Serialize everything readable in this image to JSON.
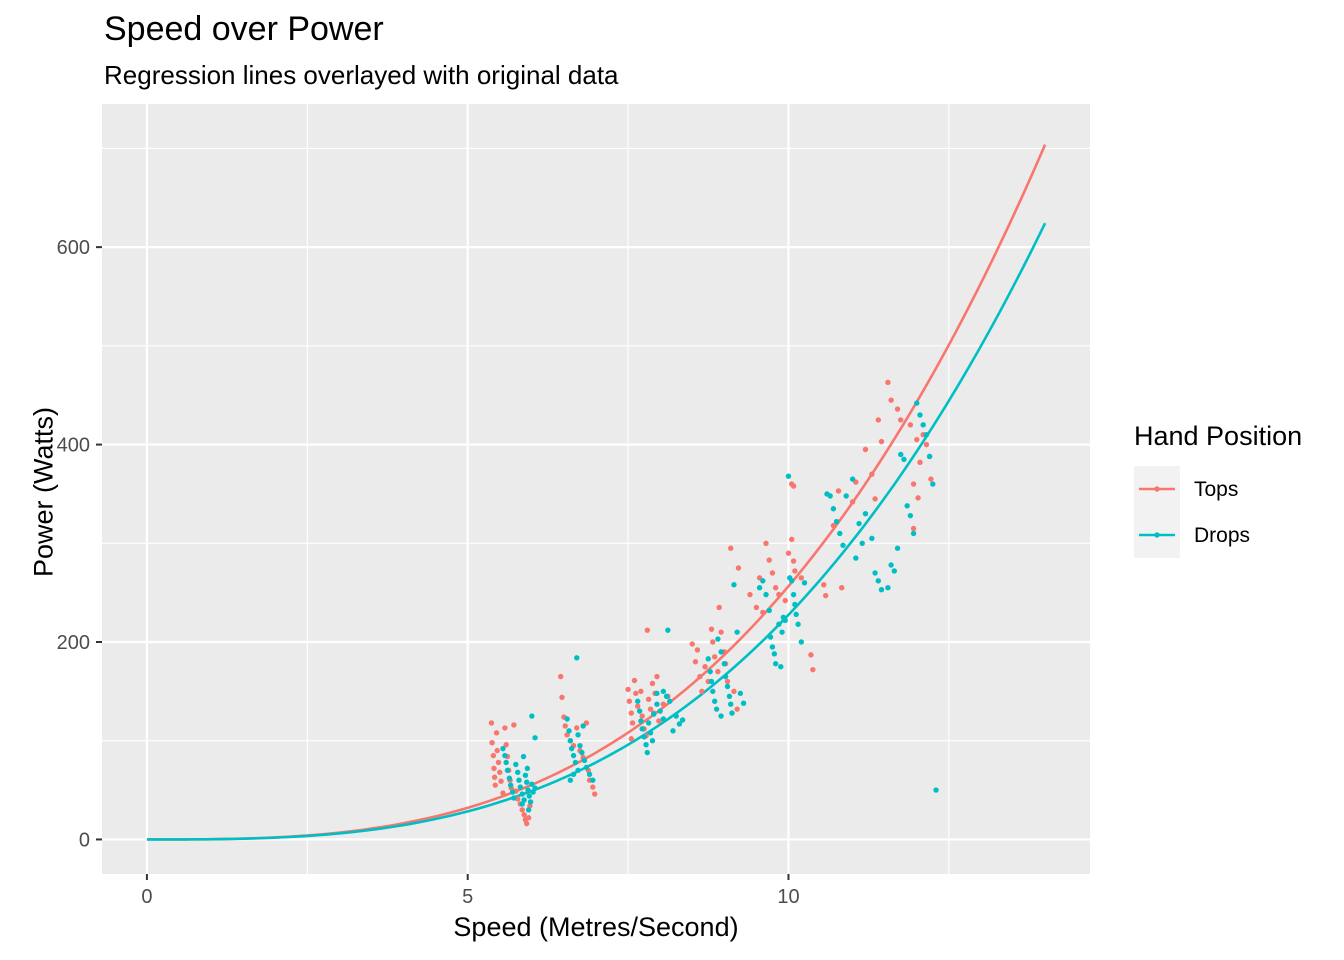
{
  "chart_data": {
    "type": "scatter",
    "title": "Speed over Power",
    "subtitle": "Regression lines overlayed with original data",
    "xlabel": "Speed (Metres/Second)",
    "ylabel": "Power (Watts)",
    "xlim": [
      -0.7,
      14.7
    ],
    "ylim": [
      -35,
      745
    ],
    "x_ticks": [
      0,
      5,
      10
    ],
    "y_ticks": [
      0,
      200,
      400,
      600
    ],
    "grid": true,
    "legend": {
      "title": "Hand Position",
      "position": "right",
      "entries": [
        "Tops",
        "Drops"
      ]
    },
    "series": [
      {
        "name": "Tops",
        "color": "#F8766D",
        "fit": {
          "model": "power ~ speed^3",
          "coefficient": 0.2565,
          "x_range": [
            0,
            14
          ]
        },
        "points": [
          [
            5.37,
            118
          ],
          [
            5.38,
            98
          ],
          [
            5.4,
            85
          ],
          [
            5.41,
            72
          ],
          [
            5.42,
            63
          ],
          [
            5.43,
            55
          ],
          [
            5.45,
            108
          ],
          [
            5.46,
            90
          ],
          [
            5.48,
            78
          ],
          [
            5.5,
            68
          ],
          [
            5.52,
            59
          ],
          [
            5.55,
            47
          ],
          [
            5.58,
            113
          ],
          [
            5.6,
            96
          ],
          [
            5.62,
            84
          ],
          [
            5.64,
            70
          ],
          [
            5.66,
            60
          ],
          [
            5.68,
            52
          ],
          [
            5.72,
            116
          ],
          [
            5.75,
            49
          ],
          [
            5.78,
            41
          ],
          [
            5.82,
            36
          ],
          [
            5.85,
            30
          ],
          [
            5.88,
            25
          ],
          [
            5.9,
            20
          ],
          [
            5.92,
            16
          ],
          [
            5.95,
            22
          ],
          [
            5.97,
            34
          ],
          [
            6.45,
            165
          ],
          [
            6.47,
            144
          ],
          [
            6.5,
            124
          ],
          [
            6.52,
            115
          ],
          [
            6.55,
            106
          ],
          [
            6.6,
            100
          ],
          [
            6.65,
            95
          ],
          [
            6.7,
            113
          ],
          [
            6.75,
            90
          ],
          [
            6.8,
            83
          ],
          [
            6.85,
            118
          ],
          [
            6.88,
            70
          ],
          [
            6.9,
            60
          ],
          [
            6.95,
            53
          ],
          [
            6.98,
            46
          ],
          [
            7.5,
            152
          ],
          [
            7.52,
            140
          ],
          [
            7.55,
            128
          ],
          [
            7.57,
            118
          ],
          [
            7.6,
            161
          ],
          [
            7.62,
            148
          ],
          [
            7.65,
            135
          ],
          [
            7.7,
            150
          ],
          [
            7.72,
            125
          ],
          [
            7.75,
            112
          ],
          [
            7.78,
            105
          ],
          [
            7.8,
            212
          ],
          [
            7.82,
            142
          ],
          [
            7.85,
            132
          ],
          [
            7.88,
            158
          ],
          [
            7.9,
            128
          ],
          [
            7.92,
            148
          ],
          [
            7.98,
            120
          ],
          [
            8.05,
            137
          ],
          [
            8.12,
            145
          ],
          [
            7.55,
            102
          ],
          [
            7.95,
            165
          ],
          [
            8.5,
            198
          ],
          [
            8.55,
            180
          ],
          [
            8.58,
            192
          ],
          [
            8.62,
            165
          ],
          [
            8.65,
            150
          ],
          [
            8.7,
            175
          ],
          [
            8.75,
            160
          ],
          [
            8.8,
            213
          ],
          [
            8.82,
            200
          ],
          [
            8.85,
            185
          ],
          [
            8.9,
            170
          ],
          [
            8.92,
            235
          ],
          [
            8.95,
            210
          ],
          [
            9.0,
            190
          ],
          [
            9.02,
            178
          ],
          [
            9.05,
            160
          ],
          [
            9.1,
            295
          ],
          [
            9.15,
            150
          ],
          [
            9.2,
            132
          ],
          [
            9.22,
            275
          ],
          [
            9.4,
            248
          ],
          [
            9.5,
            235
          ],
          [
            9.55,
            265
          ],
          [
            9.6,
            230
          ],
          [
            9.65,
            300
          ],
          [
            9.7,
            283
          ],
          [
            9.75,
            270
          ],
          [
            9.8,
            255
          ],
          [
            9.85,
            248
          ],
          [
            9.95,
            242
          ],
          [
            10.0,
            290
          ],
          [
            10.05,
            304
          ],
          [
            10.08,
            282
          ],
          [
            10.1,
            272
          ],
          [
            10.2,
            265
          ],
          [
            10.05,
            360
          ],
          [
            10.08,
            358
          ],
          [
            10.35,
            187
          ],
          [
            10.38,
            172
          ],
          [
            10.55,
            258
          ],
          [
            10.58,
            247
          ],
          [
            10.7,
            318
          ],
          [
            10.78,
            353
          ],
          [
            10.83,
            255
          ],
          [
            11.0,
            342
          ],
          [
            11.05,
            362
          ],
          [
            11.2,
            395
          ],
          [
            11.3,
            370
          ],
          [
            11.35,
            345
          ],
          [
            11.4,
            425
          ],
          [
            11.45,
            403
          ],
          [
            11.55,
            463
          ],
          [
            11.6,
            445
          ],
          [
            11.7,
            436
          ],
          [
            11.75,
            425
          ],
          [
            11.9,
            420
          ],
          [
            12.0,
            405
          ],
          [
            12.05,
            382
          ],
          [
            12.1,
            410
          ],
          [
            12.15,
            400
          ],
          [
            12.2,
            388
          ],
          [
            11.95,
            360
          ],
          [
            12.02,
            346
          ],
          [
            12.22,
            365
          ],
          [
            11.95,
            315
          ]
        ]
      },
      {
        "name": "Drops",
        "color": "#00BFC4",
        "fit": {
          "model": "power ~ speed^3",
          "coefficient": 0.2275,
          "x_range": [
            0,
            14
          ]
        },
        "points": [
          [
            5.55,
            92
          ],
          [
            5.58,
            85
          ],
          [
            5.6,
            78
          ],
          [
            5.62,
            70
          ],
          [
            5.65,
            62
          ],
          [
            5.67,
            55
          ],
          [
            5.7,
            48
          ],
          [
            5.72,
            42
          ],
          [
            5.75,
            76
          ],
          [
            5.78,
            68
          ],
          [
            5.8,
            60
          ],
          [
            5.82,
            53
          ],
          [
            5.85,
            46
          ],
          [
            5.88,
            40
          ],
          [
            5.9,
            65
          ],
          [
            5.92,
            58
          ],
          [
            5.94,
            50
          ],
          [
            5.96,
            44
          ],
          [
            5.98,
            38
          ],
          [
            6.0,
            56
          ],
          [
            6.02,
            48
          ],
          [
            6.05,
            52
          ],
          [
            5.85,
            36
          ],
          [
            5.95,
            30
          ],
          [
            6.0,
            125
          ],
          [
            5.87,
            84
          ],
          [
            5.93,
            72
          ],
          [
            6.05,
            103
          ],
          [
            6.55,
            122
          ],
          [
            6.58,
            110
          ],
          [
            6.6,
            100
          ],
          [
            6.62,
            92
          ],
          [
            6.65,
            85
          ],
          [
            6.68,
            78
          ],
          [
            6.7,
            184
          ],
          [
            6.72,
            70
          ],
          [
            6.75,
            95
          ],
          [
            6.78,
            88
          ],
          [
            6.82,
            80
          ],
          [
            6.85,
            73
          ],
          [
            6.9,
            66
          ],
          [
            6.95,
            60
          ],
          [
            6.6,
            60
          ],
          [
            6.65,
            66
          ],
          [
            6.72,
            106
          ],
          [
            6.8,
            115
          ],
          [
            7.65,
            140
          ],
          [
            7.68,
            130
          ],
          [
            7.7,
            120
          ],
          [
            7.72,
            112
          ],
          [
            7.75,
            104
          ],
          [
            7.78,
            96
          ],
          [
            7.8,
            88
          ],
          [
            7.82,
            118
          ],
          [
            7.85,
            108
          ],
          [
            7.88,
            100
          ],
          [
            7.9,
            127
          ],
          [
            7.95,
            137
          ],
          [
            8.0,
            130
          ],
          [
            8.05,
            122
          ],
          [
            8.1,
            145
          ],
          [
            8.12,
            212
          ],
          [
            8.15,
            140
          ],
          [
            8.2,
            110
          ],
          [
            8.25,
            125
          ],
          [
            8.3,
            117
          ],
          [
            8.35,
            121
          ],
          [
            7.95,
            148
          ],
          [
            8.05,
            150
          ],
          [
            8.75,
            183
          ],
          [
            8.78,
            170
          ],
          [
            8.8,
            160
          ],
          [
            8.82,
            150
          ],
          [
            8.85,
            140
          ],
          [
            8.88,
            132
          ],
          [
            8.9,
            203
          ],
          [
            8.95,
            190
          ],
          [
            9.0,
            178
          ],
          [
            9.02,
            165
          ],
          [
            9.05,
            155
          ],
          [
            9.08,
            145
          ],
          [
            9.1,
            137
          ],
          [
            9.12,
            128
          ],
          [
            9.15,
            258
          ],
          [
            9.2,
            210
          ],
          [
            9.25,
            148
          ],
          [
            9.3,
            138
          ],
          [
            8.95,
            125
          ],
          [
            9.55,
            255
          ],
          [
            9.6,
            262
          ],
          [
            9.65,
            248
          ],
          [
            9.7,
            232
          ],
          [
            9.72,
            205
          ],
          [
            9.75,
            195
          ],
          [
            9.78,
            188
          ],
          [
            9.8,
            178
          ],
          [
            9.85,
            218
          ],
          [
            9.9,
            210
          ],
          [
            9.92,
            225
          ],
          [
            9.95,
            222
          ],
          [
            10.0,
            368
          ],
          [
            10.02,
            265
          ],
          [
            10.05,
            262
          ],
          [
            10.08,
            248
          ],
          [
            10.1,
            238
          ],
          [
            10.12,
            228
          ],
          [
            10.15,
            218
          ],
          [
            10.2,
            200
          ],
          [
            10.25,
            260
          ],
          [
            9.88,
            175
          ],
          [
            10.6,
            350
          ],
          [
            10.65,
            348
          ],
          [
            10.7,
            335
          ],
          [
            10.75,
            322
          ],
          [
            10.8,
            310
          ],
          [
            10.85,
            298
          ],
          [
            10.9,
            348
          ],
          [
            11.0,
            365
          ],
          [
            11.05,
            285
          ],
          [
            11.1,
            320
          ],
          [
            11.15,
            300
          ],
          [
            11.2,
            330
          ],
          [
            11.3,
            305
          ],
          [
            11.35,
            270
          ],
          [
            11.4,
            262
          ],
          [
            11.45,
            253
          ],
          [
            11.55,
            255
          ],
          [
            11.6,
            278
          ],
          [
            11.65,
            272
          ],
          [
            11.7,
            295
          ],
          [
            11.75,
            390
          ],
          [
            11.8,
            385
          ],
          [
            11.85,
            338
          ],
          [
            11.9,
            328
          ],
          [
            11.95,
            310
          ],
          [
            12.0,
            442
          ],
          [
            12.05,
            430
          ],
          [
            12.1,
            420
          ],
          [
            12.15,
            410
          ],
          [
            12.2,
            388
          ],
          [
            12.25,
            360
          ],
          [
            12.3,
            50
          ]
        ]
      }
    ]
  }
}
